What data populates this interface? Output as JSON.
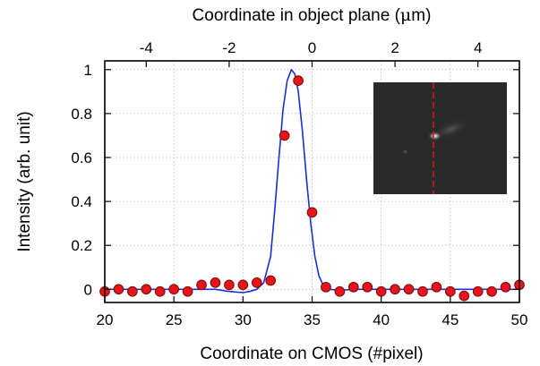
{
  "chart_data": {
    "type": "scatter",
    "xlabel": "Coordinate on CMOS (#pixel)",
    "x2label_prefix": "Coordinate in object plane (",
    "x2label_mu": "μ",
    "x2label_suffix": "m)",
    "ylabel": "Intensity (arb. unit)",
    "xlim": [
      20,
      50
    ],
    "ylim": [
      -0.06,
      1.04
    ],
    "x2lim": [
      -5.0,
      5.0
    ],
    "xticks": [
      20,
      25,
      30,
      35,
      40,
      45,
      50
    ],
    "yticks": [
      0,
      0.2,
      0.4,
      0.6,
      0.8,
      1
    ],
    "yticklabels": [
      "0",
      "0.2",
      "0.4",
      "0.6",
      "0.8",
      "1"
    ],
    "x2ticks": [
      -4,
      -2,
      0,
      2,
      4
    ],
    "x2ticklabels": [
      "-4",
      "-2",
      "0",
      "2",
      "4"
    ],
    "grid": true,
    "series": [
      {
        "kind": "points",
        "color": "#e8141a",
        "edge": "#7a1010",
        "x": [
          20,
          21,
          22,
          23,
          24,
          25,
          26,
          27,
          28,
          29,
          30,
          31,
          32,
          33,
          34,
          35,
          36,
          37,
          38,
          39,
          40,
          41,
          42,
          43,
          44,
          45,
          46,
          47,
          48,
          49,
          50
        ],
        "y": [
          -0.01,
          0.0,
          -0.01,
          0.0,
          -0.01,
          0.0,
          -0.01,
          0.02,
          0.03,
          0.02,
          0.02,
          0.03,
          0.04,
          0.7,
          0.95,
          0.35,
          0.01,
          -0.01,
          0.01,
          0.01,
          -0.01,
          0.0,
          0.0,
          -0.01,
          0.01,
          -0.01,
          -0.03,
          -0.01,
          -0.01,
          0.01,
          0.02
        ]
      },
      {
        "kind": "line",
        "color": "#1a2fd6",
        "x": [
          20,
          22,
          24,
          26,
          28,
          29,
          30,
          30.5,
          31,
          31.5,
          32,
          32.3,
          32.6,
          32.9,
          33.2,
          33.5,
          33.75,
          34,
          34.3,
          34.6,
          34.9,
          35.2,
          35.5,
          35.8,
          36,
          36.3,
          37,
          38,
          40,
          42,
          44,
          46,
          48,
          50
        ],
        "y": [
          0.0,
          0.0,
          0.0,
          0.0,
          0.0,
          -0.01,
          -0.015,
          -0.01,
          0.0,
          0.03,
          0.15,
          0.36,
          0.6,
          0.82,
          0.95,
          1.0,
          0.98,
          0.9,
          0.72,
          0.5,
          0.3,
          0.15,
          0.06,
          0.02,
          0.01,
          0.0,
          -0.005,
          0.0,
          0.0,
          0.0,
          0.0,
          0.0,
          0.0,
          0.0
        ]
      }
    ],
    "inset": {
      "background": "#2a2a2a",
      "marker_color": "#d41818",
      "marker_x": 0.45,
      "spot_x": 0.46,
      "spot_y": 0.48
    }
  }
}
